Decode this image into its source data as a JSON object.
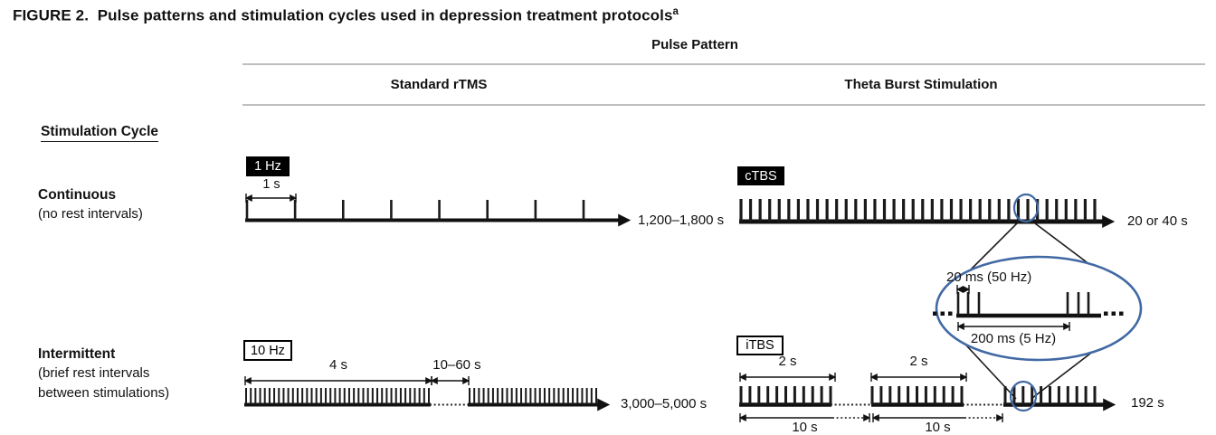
{
  "figure": {
    "label": "FIGURE 2.",
    "title": "Pulse patterns and stimulation cycles used in depression treatment protocols",
    "footnote_marker": "a"
  },
  "header": {
    "group": "Pulse Pattern",
    "col_standard": "Standard rTMS",
    "col_tbs": "Theta Burst Stimulation"
  },
  "axis": {
    "title": "Stimulation Cycle"
  },
  "rows": {
    "continuous": {
      "name": "Continuous",
      "note": "(no rest intervals)"
    },
    "intermittent": {
      "name": "Intermittent",
      "note_line1": "(brief rest intervals",
      "note_line2": "between stimulations)"
    }
  },
  "panels": {
    "rtms_continuous": {
      "tag": "1 Hz",
      "pulse_interval": "1 s",
      "total_duration": "1,200–1,800 s"
    },
    "ctbs": {
      "tag": "cTBS",
      "total_duration": "20 or 40 s"
    },
    "inset": {
      "burst_label": "20 ms (50 Hz)",
      "cycle_label": "200 ms (5 Hz)"
    },
    "rtms_intermittent": {
      "tag": "10 Hz",
      "train_label": "4 s",
      "rest_label": "10–60 s",
      "total_duration": "3,000–5,000 s"
    },
    "itbs": {
      "tag": "iTBS",
      "train_label_1": "2 s",
      "train_label_2": "2 s",
      "cycle_label_1": "10 s",
      "cycle_label_2": "10 s",
      "total_duration": "192 s"
    }
  },
  "colors": {
    "callout_blue": "#4169a3",
    "ink": "#111111",
    "rule_gray": "#a8a8a8"
  }
}
